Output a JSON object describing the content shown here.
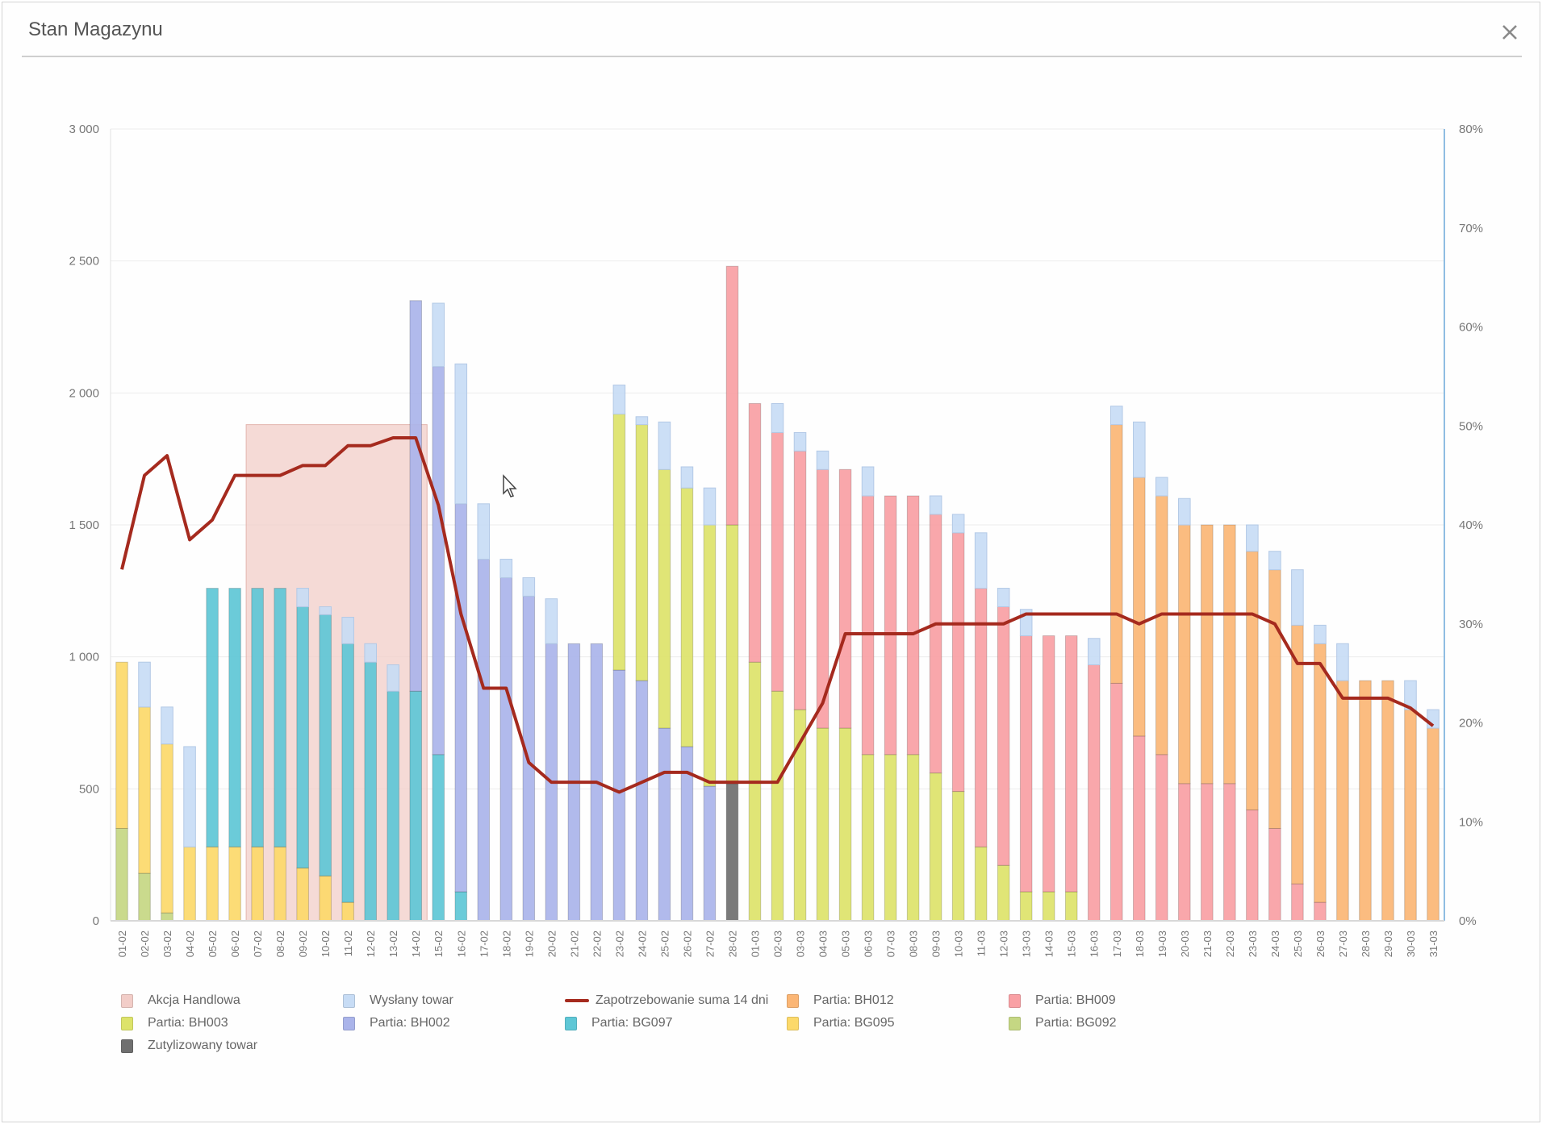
{
  "window": {
    "title": "Stan Magazynu",
    "close_icon": "close-icon"
  },
  "colors": {
    "akcja": "#f2cdc8",
    "wyslany": "#c7dcf5",
    "zapotrzebowanie": "#a52a1e",
    "BH012": "#fbb675",
    "BH009": "#f9a0a4",
    "BH003": "#dde36a",
    "BH002": "#aab4ea",
    "BG097": "#5ec7d6",
    "BG095": "#fcd96a",
    "BG092": "#c5d783",
    "zutylizowany": "#6f6f6f"
  },
  "chart_data": {
    "type": "bar",
    "stacked": true,
    "title": "Stan Magazynu",
    "xlabel": "",
    "ylabel": "",
    "y_left": {
      "min": 0,
      "max": 3000,
      "ticks": [
        "0",
        "500",
        "1 000",
        "1 500",
        "2 000",
        "2 500",
        "3 000"
      ],
      "tick_values": [
        0,
        500,
        1000,
        1500,
        2000,
        2500,
        3000
      ]
    },
    "y_right": {
      "min": 0,
      "max": 80,
      "ticks": [
        "0%",
        "10%",
        "20%",
        "30%",
        "40%",
        "50%",
        "60%",
        "70%",
        "80%"
      ],
      "tick_values": [
        0,
        10,
        20,
        30,
        40,
        50,
        60,
        70,
        80
      ]
    },
    "grid": true,
    "legend_position": "bottom",
    "categories": [
      "01-02",
      "02-02",
      "03-02",
      "04-02",
      "05-02",
      "06-02",
      "07-02",
      "08-02",
      "09-02",
      "10-02",
      "11-02",
      "12-02",
      "13-02",
      "14-02",
      "15-02",
      "16-02",
      "17-02",
      "18-02",
      "19-02",
      "20-02",
      "21-02",
      "22-02",
      "23-02",
      "24-02",
      "25-02",
      "26-02",
      "27-02",
      "28-02",
      "01-03",
      "02-03",
      "03-03",
      "04-03",
      "05-03",
      "06-03",
      "07-03",
      "08-03",
      "09-03",
      "10-03",
      "11-03",
      "12-03",
      "13-03",
      "14-03",
      "15-03",
      "16-03",
      "17-03",
      "18-03",
      "19-03",
      "20-03",
      "21-03",
      "22-03",
      "23-03",
      "24-03",
      "25-03",
      "26-03",
      "27-03",
      "28-03",
      "29-03",
      "30-03",
      "31-03"
    ],
    "annotation": {
      "name": "Akcja Handlowa",
      "from": "07-02",
      "to": "15-02",
      "value": 1880
    },
    "series": [
      {
        "name": "Zutylizowany towar",
        "key": "zutylizowany",
        "values": [
          0,
          0,
          0,
          0,
          0,
          0,
          0,
          0,
          0,
          0,
          0,
          0,
          0,
          0,
          0,
          0,
          0,
          0,
          0,
          0,
          0,
          0,
          0,
          0,
          0,
          0,
          0,
          520,
          0,
          0,
          0,
          0,
          0,
          0,
          0,
          0,
          0,
          0,
          0,
          0,
          0,
          0,
          0,
          0,
          0,
          0,
          0,
          0,
          0,
          0,
          0,
          0,
          0,
          0,
          0,
          0,
          0,
          0,
          0
        ]
      },
      {
        "name": "Partia: BG092",
        "key": "BG092",
        "values": [
          350,
          180,
          30,
          0,
          0,
          0,
          0,
          0,
          0,
          0,
          0,
          0,
          0,
          0,
          0,
          0,
          0,
          0,
          0,
          0,
          0,
          0,
          0,
          0,
          0,
          0,
          0,
          0,
          0,
          0,
          0,
          0,
          0,
          0,
          0,
          0,
          0,
          0,
          0,
          0,
          0,
          0,
          0,
          0,
          0,
          0,
          0,
          0,
          0,
          0,
          0,
          0,
          0,
          0,
          0,
          0,
          0,
          0,
          0
        ]
      },
      {
        "name": "Partia: BG095",
        "key": "BG095",
        "values": [
          630,
          630,
          640,
          280,
          280,
          280,
          280,
          280,
          200,
          170,
          70,
          0,
          0,
          0,
          0,
          0,
          0,
          0,
          0,
          0,
          0,
          0,
          0,
          0,
          0,
          0,
          0,
          0,
          0,
          0,
          0,
          0,
          0,
          0,
          0,
          0,
          0,
          0,
          0,
          0,
          0,
          0,
          0,
          0,
          0,
          0,
          0,
          0,
          0,
          0,
          0,
          0,
          0,
          0,
          0,
          0,
          0,
          0,
          0
        ]
      },
      {
        "name": "Partia: BG097",
        "key": "BG097",
        "values": [
          0,
          0,
          0,
          0,
          980,
          980,
          980,
          980,
          990,
          990,
          980,
          980,
          870,
          870,
          630,
          110,
          0,
          0,
          0,
          0,
          0,
          0,
          0,
          0,
          0,
          0,
          0,
          0,
          0,
          0,
          0,
          0,
          0,
          0,
          0,
          0,
          0,
          0,
          0,
          0,
          0,
          0,
          0,
          0,
          0,
          0,
          0,
          0,
          0,
          0,
          0,
          0,
          0,
          0,
          0,
          0,
          0,
          0,
          0
        ]
      },
      {
        "name": "Partia: BH002",
        "key": "BH002",
        "values": [
          0,
          0,
          0,
          0,
          0,
          0,
          0,
          0,
          0,
          0,
          0,
          0,
          0,
          1480,
          1470,
          1470,
          1370,
          1300,
          1230,
          1050,
          1050,
          1050,
          950,
          910,
          730,
          660,
          510,
          0,
          0,
          0,
          0,
          0,
          0,
          0,
          0,
          0,
          0,
          0,
          0,
          0,
          0,
          0,
          0,
          0,
          0,
          0,
          0,
          0,
          0,
          0,
          0,
          0,
          0,
          0,
          0,
          0,
          0,
          0,
          0
        ]
      },
      {
        "name": "Partia: BH003",
        "key": "BH003",
        "values": [
          0,
          0,
          0,
          0,
          0,
          0,
          0,
          0,
          0,
          0,
          0,
          0,
          0,
          0,
          0,
          0,
          0,
          0,
          0,
          0,
          0,
          0,
          970,
          970,
          980,
          980,
          990,
          980,
          980,
          870,
          800,
          730,
          730,
          630,
          630,
          630,
          560,
          490,
          280,
          210,
          110,
          110,
          110,
          0,
          0,
          0,
          0,
          0,
          0,
          0,
          0,
          0,
          0,
          0,
          0,
          0,
          0,
          0,
          0
        ]
      },
      {
        "name": "Partia: BH009",
        "key": "BH009",
        "values": [
          0,
          0,
          0,
          0,
          0,
          0,
          0,
          0,
          0,
          0,
          0,
          0,
          0,
          0,
          0,
          0,
          0,
          0,
          0,
          0,
          0,
          0,
          0,
          0,
          0,
          0,
          0,
          980,
          980,
          980,
          980,
          980,
          980,
          980,
          980,
          980,
          980,
          980,
          980,
          980,
          970,
          970,
          970,
          970,
          900,
          700,
          630,
          520,
          520,
          520,
          420,
          350,
          140,
          70,
          0,
          0,
          0,
          0,
          0
        ]
      },
      {
        "name": "Partia: BH012",
        "key": "BH012",
        "values": [
          0,
          0,
          0,
          0,
          0,
          0,
          0,
          0,
          0,
          0,
          0,
          0,
          0,
          0,
          0,
          0,
          0,
          0,
          0,
          0,
          0,
          0,
          0,
          0,
          0,
          0,
          0,
          0,
          0,
          0,
          0,
          0,
          0,
          0,
          0,
          0,
          0,
          0,
          0,
          0,
          0,
          0,
          0,
          0,
          980,
          980,
          980,
          980,
          980,
          980,
          980,
          980,
          980,
          980,
          910,
          910,
          910,
          800,
          730
        ]
      },
      {
        "name": "Wysłany towar",
        "key": "wyslany",
        "values": [
          0,
          170,
          140,
          380,
          0,
          0,
          0,
          0,
          70,
          30,
          100,
          70,
          100,
          0,
          240,
          530,
          210,
          70,
          70,
          170,
          0,
          0,
          110,
          30,
          180,
          80,
          140,
          0,
          0,
          110,
          70,
          70,
          0,
          110,
          0,
          0,
          70,
          70,
          210,
          70,
          100,
          0,
          0,
          100,
          70,
          210,
          70,
          100,
          0,
          0,
          100,
          70,
          210,
          70,
          140,
          0,
          0,
          110,
          70
        ]
      }
    ],
    "line": {
      "name": "Zapotrzebowanie suma 14 dni",
      "axis": "right",
      "unit": "%",
      "values": [
        35.5,
        45,
        47,
        38.5,
        40.5,
        45,
        45,
        45,
        46,
        46,
        48,
        48,
        48.8,
        48.8,
        42,
        31,
        23.5,
        23.5,
        16,
        14,
        14,
        14,
        13,
        14,
        15,
        15,
        14,
        14,
        14,
        14,
        18,
        22,
        29,
        29,
        29,
        29,
        30,
        30,
        30,
        30,
        31,
        31,
        31,
        31,
        31,
        30,
        31,
        31,
        31,
        31,
        31,
        30,
        26,
        26,
        22.5,
        22.5,
        22.5,
        21.5,
        19.7
      ]
    }
  },
  "legend": [
    {
      "label": "Akcja Handlowa",
      "key": "akcja",
      "kind": "box"
    },
    {
      "label": "Wysłany towar",
      "key": "wyslany",
      "kind": "box"
    },
    {
      "label": "Zapotrzebowanie suma 14 dni",
      "key": "zapotrzebowanie",
      "kind": "line"
    },
    {
      "label": "Partia: BH012",
      "key": "BH012",
      "kind": "box"
    },
    {
      "label": "Partia: BH009",
      "key": "BH009",
      "kind": "box"
    },
    {
      "label": "Partia: BH003",
      "key": "BH003",
      "kind": "box"
    },
    {
      "label": "Partia: BH002",
      "key": "BH002",
      "kind": "box"
    },
    {
      "label": "Partia: BG097",
      "key": "BG097",
      "kind": "box"
    },
    {
      "label": "Partia: BG095",
      "key": "BG095",
      "kind": "box"
    },
    {
      "label": "Partia: BG092",
      "key": "BG092",
      "kind": "box"
    },
    {
      "label": "Zutylizowany towar",
      "key": "zutylizowany",
      "kind": "box"
    }
  ]
}
